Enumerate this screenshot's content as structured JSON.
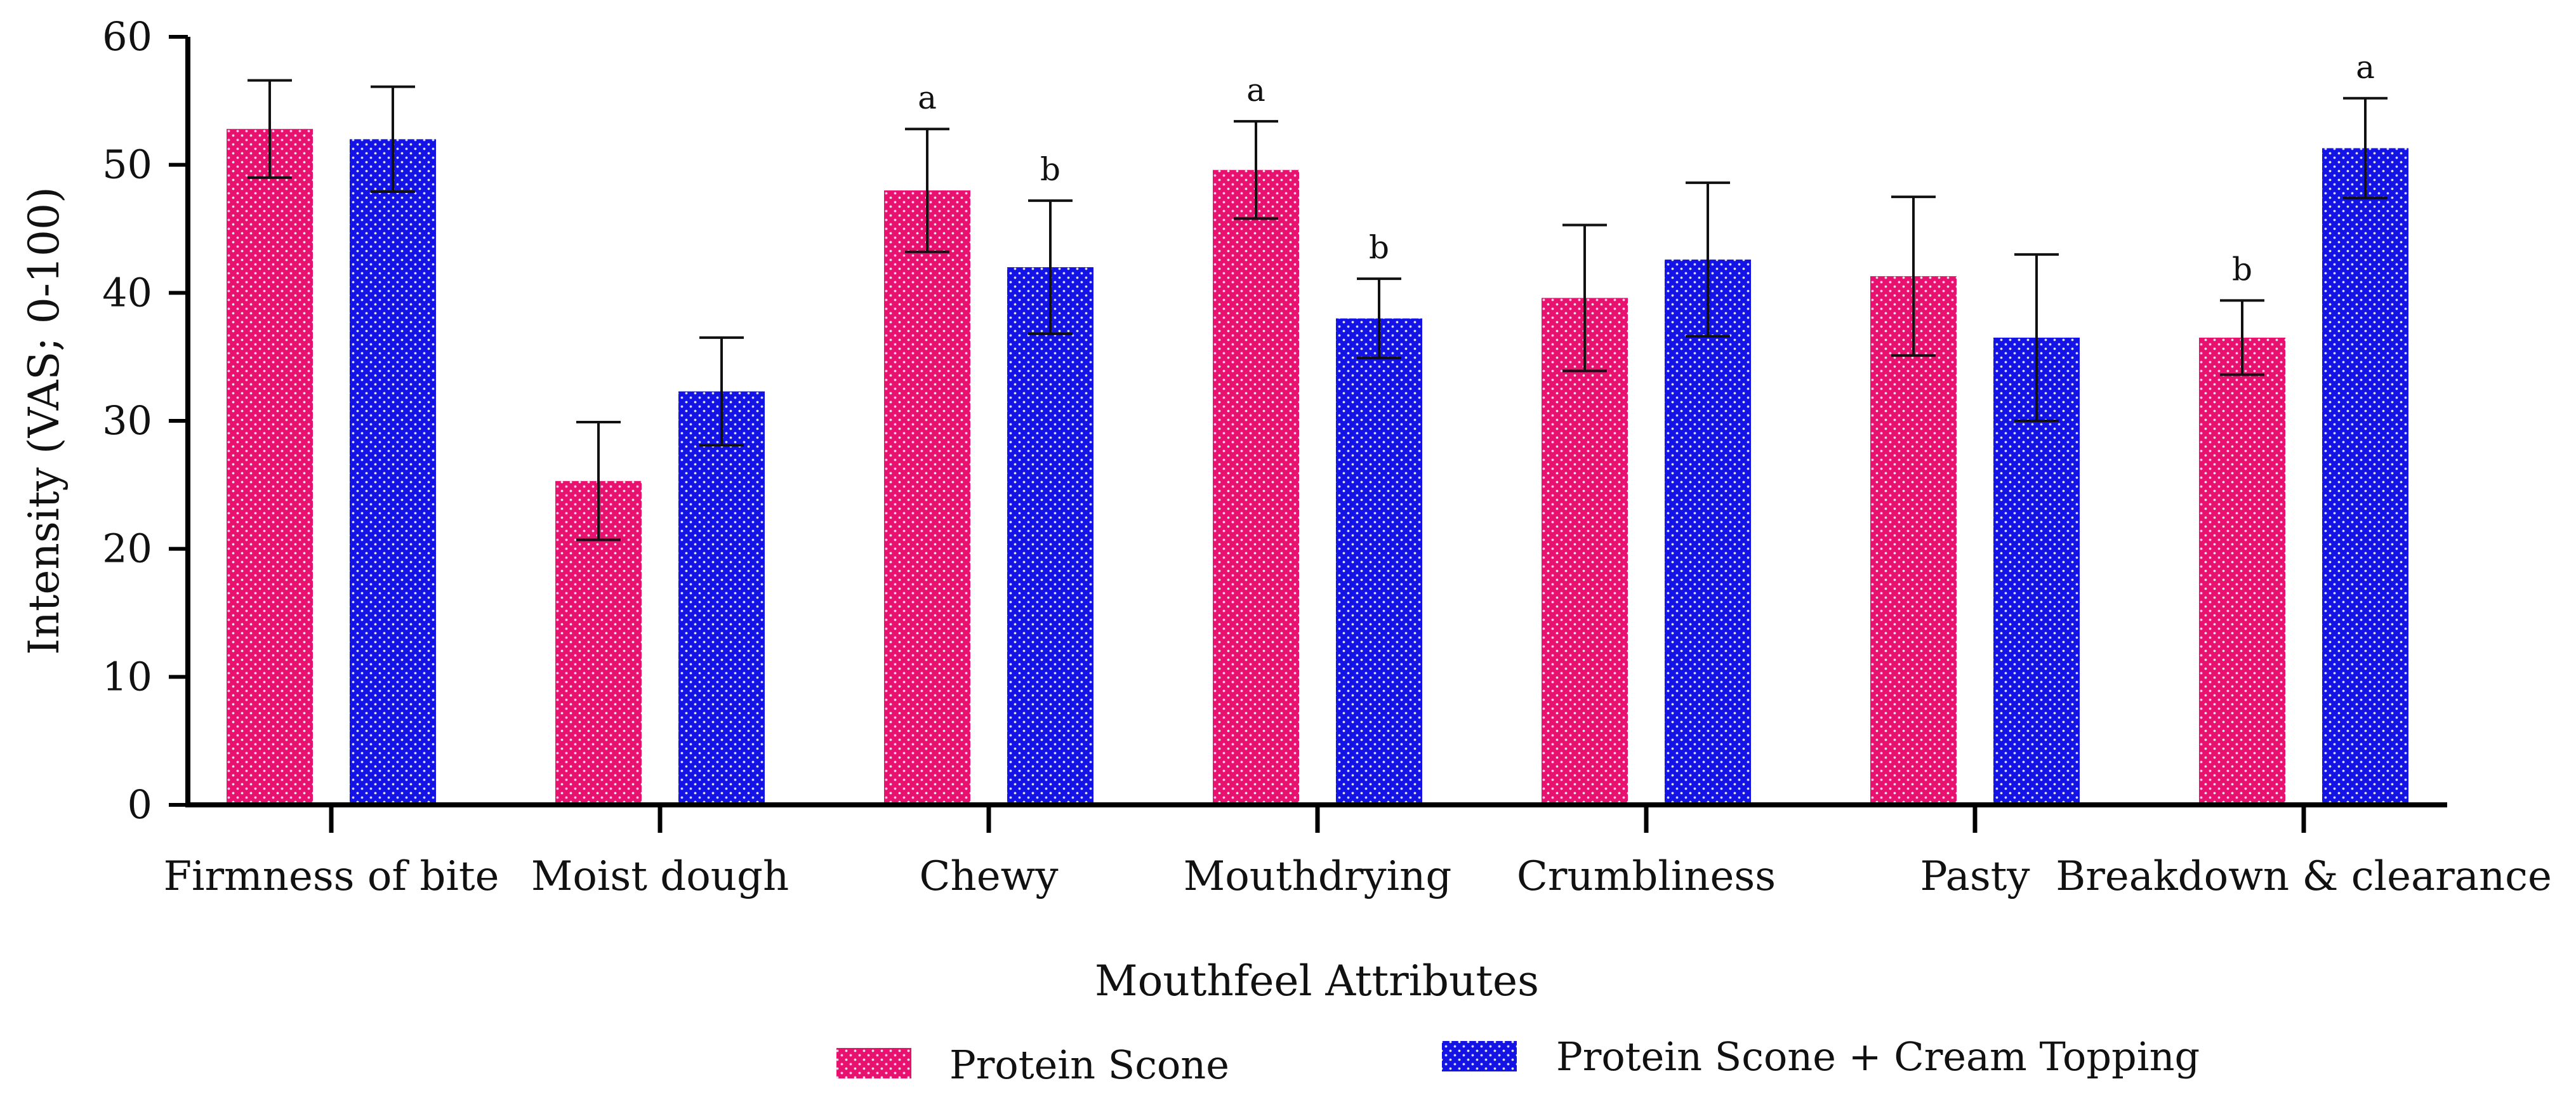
{
  "chart_data": {
    "type": "bar",
    "xlabel": "Mouthfeel Attributes",
    "ylabel": "Intensity (VAS; 0-100)",
    "ylim": [
      0,
      60
    ],
    "yticks": [
      0,
      10,
      20,
      30,
      40,
      50,
      60
    ],
    "grid": false,
    "legend_position": "bottom",
    "categories": [
      "Firmness of bite",
      "Moist dough",
      "Chewy",
      "Mouthdrying",
      "Crumbliness",
      "Pasty",
      "Breakdown & clearance"
    ],
    "series": [
      {
        "name": "Protein Scone",
        "color": "#e8116f",
        "values": [
          52.8,
          25.3,
          48.0,
          49.6,
          39.6,
          41.3,
          36.5
        ],
        "error": [
          3.8,
          4.6,
          4.8,
          3.8,
          5.7,
          6.2,
          2.9
        ],
        "annotations": [
          "",
          "",
          "a",
          "a",
          "",
          "",
          "b"
        ]
      },
      {
        "name": "Protein Scone + Cream Topping",
        "color": "#1313e6",
        "values": [
          52.0,
          32.3,
          42.0,
          38.0,
          42.6,
          36.5,
          51.3
        ],
        "error": [
          4.1,
          4.2,
          5.2,
          3.1,
          6.0,
          6.5,
          3.9
        ],
        "annotations": [
          "",
          "",
          "b",
          "b",
          "",
          "",
          "a"
        ]
      }
    ]
  }
}
